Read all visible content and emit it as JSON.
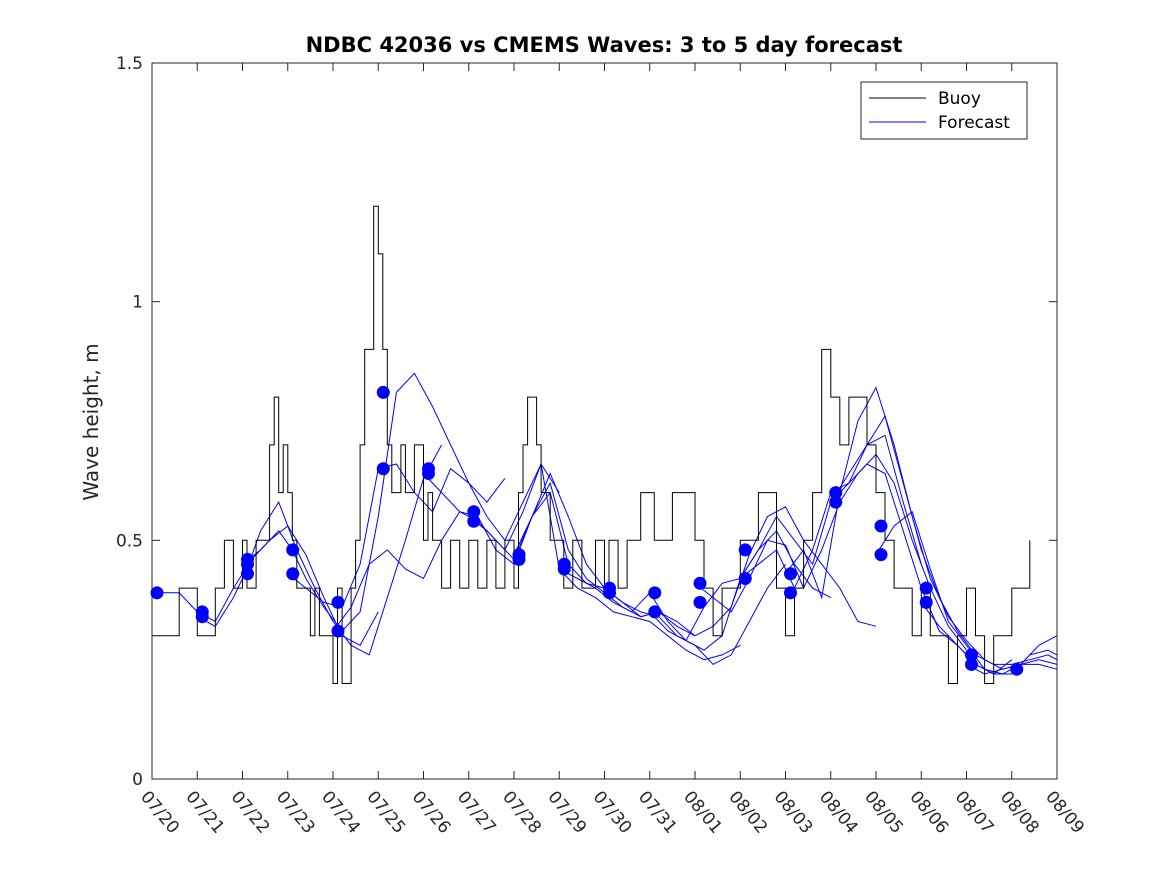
{
  "chart_data": {
    "type": "line",
    "title": "NDBC 42036 vs CMEMS Waves: 3 to 5 day forecast",
    "xlabel": "",
    "ylabel": "Wave height, m",
    "x_tick_labels": [
      "07/20",
      "07/21",
      "07/22",
      "07/23",
      "07/24",
      "07/25",
      "07/26",
      "07/27",
      "07/28",
      "07/29",
      "07/30",
      "07/31",
      "08/01",
      "08/02",
      "08/03",
      "08/04",
      "08/05",
      "08/06",
      "08/07",
      "08/08",
      "08/09"
    ],
    "x_range_days": [
      0,
      20
    ],
    "y_tick_labels": [
      "0",
      "0.5",
      "1",
      "1.5"
    ],
    "ylim": [
      0,
      1.5
    ],
    "grid": false,
    "legend_position": "top-right",
    "colors": {
      "buoy": "#000000",
      "forecast": "#0000ff"
    },
    "series": [
      {
        "name": "Buoy",
        "style": "step",
        "x": [
          0,
          0.6,
          1.0,
          1.1,
          1.4,
          1.6,
          1.8,
          2.0,
          2.1,
          2.3,
          2.6,
          2.7,
          2.8,
          2.9,
          3.0,
          3.1,
          3.2,
          3.4,
          3.5,
          3.6,
          3.7,
          3.9,
          4.0,
          4.1,
          4.2,
          4.4,
          4.5,
          4.6,
          4.7,
          4.8,
          4.9,
          5.0,
          5.1,
          5.2,
          5.3,
          5.5,
          5.6,
          5.8,
          6.0,
          6.1,
          6.2,
          6.4,
          6.6,
          6.8,
          7.0,
          7.2,
          7.4,
          7.6,
          7.8,
          8.0,
          8.1,
          8.2,
          8.3,
          8.4,
          8.5,
          8.6,
          8.8,
          9.0,
          9.1,
          9.3,
          9.5,
          9.8,
          10.0,
          10.1,
          10.3,
          10.5,
          10.8,
          11.0,
          11.1,
          11.3,
          11.5,
          11.8,
          12.0,
          12.2,
          12.4,
          12.6,
          12.8,
          13.0,
          13.2,
          13.4,
          13.6,
          13.8,
          14.0,
          14.2,
          14.4,
          14.6,
          14.8,
          15.0,
          15.2,
          15.4,
          15.6,
          15.8,
          16.0,
          16.2,
          16.4,
          16.6,
          16.8,
          17.0,
          17.2,
          17.4,
          17.6,
          17.8,
          18.0,
          18.2,
          18.4,
          18.6,
          18.8,
          19.0,
          19.2,
          19.4
        ],
        "y": [
          0.3,
          0.4,
          0.3,
          0.3,
          0.4,
          0.5,
          0.4,
          0.5,
          0.4,
          0.5,
          0.7,
          0.8,
          0.6,
          0.7,
          0.6,
          0.5,
          0.4,
          0.4,
          0.3,
          0.4,
          0.3,
          0.3,
          0.2,
          0.4,
          0.2,
          0.4,
          0.5,
          0.7,
          0.9,
          0.9,
          1.2,
          1.1,
          0.9,
          0.7,
          0.6,
          0.7,
          0.6,
          0.7,
          0.5,
          0.6,
          0.5,
          0.4,
          0.5,
          0.4,
          0.5,
          0.4,
          0.5,
          0.4,
          0.5,
          0.4,
          0.6,
          0.7,
          0.8,
          0.8,
          0.7,
          0.6,
          0.5,
          0.5,
          0.4,
          0.5,
          0.4,
          0.5,
          0.4,
          0.5,
          0.4,
          0.5,
          0.6,
          0.6,
          0.5,
          0.5,
          0.6,
          0.6,
          0.5,
          0.4,
          0.3,
          0.4,
          0.4,
          0.5,
          0.5,
          0.6,
          0.6,
          0.4,
          0.3,
          0.4,
          0.5,
          0.6,
          0.9,
          0.8,
          0.7,
          0.8,
          0.8,
          0.7,
          0.6,
          0.5,
          0.4,
          0.4,
          0.3,
          0.4,
          0.3,
          0.3,
          0.2,
          0.3,
          0.4,
          0.3,
          0.2,
          0.3,
          0.3,
          0.4,
          0.4,
          0.5
        ]
      },
      {
        "name": "Forecast",
        "style": "line",
        "segments": [
          {
            "x": [
              0,
              0.6,
              1.0,
              1.4,
              1.8,
              2.2,
              2.6,
              3.0,
              3.4,
              3.8,
              4.2,
              4.6,
              5.0
            ],
            "y": [
              0.39,
              0.39,
              0.35,
              0.33,
              0.4,
              0.46,
              0.5,
              0.53,
              0.47,
              0.38,
              0.3,
              0.28,
              0.35
            ]
          },
          {
            "x": [
              1.0,
              1.4,
              1.8,
              2.1,
              2.4,
              2.8,
              3.2,
              3.6,
              4.0,
              4.4,
              4.8,
              5.2,
              5.6,
              6.0,
              6.4
            ],
            "y": [
              0.34,
              0.32,
              0.38,
              0.44,
              0.52,
              0.58,
              0.48,
              0.4,
              0.33,
              0.28,
              0.26,
              0.38,
              0.5,
              0.63,
              0.7
            ]
          },
          {
            "x": [
              2.0,
              2.4,
              2.8,
              3.1,
              3.4,
              3.8,
              4.2,
              4.6,
              5.0,
              5.4,
              5.8,
              6.2,
              6.6,
              7.0,
              7.4,
              7.8
            ],
            "y": [
              0.45,
              0.48,
              0.52,
              0.48,
              0.42,
              0.36,
              0.31,
              0.35,
              0.55,
              0.81,
              0.85,
              0.78,
              0.7,
              0.62,
              0.58,
              0.63
            ]
          },
          {
            "x": [
              3.0,
              3.4,
              3.8,
              4.2,
              4.6,
              5.0,
              5.4,
              5.8,
              6.2,
              6.6,
              7.0,
              7.4,
              7.8,
              8.2,
              8.6,
              9.0
            ],
            "y": [
              0.43,
              0.4,
              0.37,
              0.36,
              0.45,
              0.65,
              0.66,
              0.6,
              0.56,
              0.65,
              0.62,
              0.55,
              0.5,
              0.58,
              0.66,
              0.6
            ]
          },
          {
            "x": [
              4.0,
              4.4,
              4.8,
              5.2,
              5.6,
              6.0,
              6.4,
              6.8,
              7.2,
              7.6,
              8.0,
              8.4,
              8.8,
              9.2,
              9.6,
              10.0
            ],
            "y": [
              0.31,
              0.36,
              0.45,
              0.48,
              0.44,
              0.42,
              0.5,
              0.56,
              0.55,
              0.48,
              0.45,
              0.55,
              0.64,
              0.55,
              0.45,
              0.4
            ]
          },
          {
            "x": [
              6.0,
              6.4,
              6.8,
              7.2,
              7.6,
              8.0,
              8.4,
              8.8,
              9.2,
              9.6,
              10.0,
              10.4,
              10.8,
              11.2,
              11.6,
              12.0
            ],
            "y": [
              0.64,
              0.6,
              0.56,
              0.54,
              0.5,
              0.46,
              0.55,
              0.62,
              0.48,
              0.42,
              0.39,
              0.36,
              0.34,
              0.35,
              0.32,
              0.3
            ]
          },
          {
            "x": [
              7.0,
              7.4,
              7.8,
              8.2,
              8.6,
              9.0,
              9.4,
              9.8,
              10.2,
              10.6,
              11.0,
              11.4,
              11.8,
              12.2,
              12.6,
              13.0
            ],
            "y": [
              0.55,
              0.52,
              0.48,
              0.56,
              0.66,
              0.44,
              0.4,
              0.38,
              0.35,
              0.34,
              0.33,
              0.3,
              0.27,
              0.25,
              0.26,
              0.28
            ]
          },
          {
            "x": [
              8.0,
              8.4,
              8.8,
              9.2,
              9.6,
              10.0,
              10.4,
              10.8,
              11.2,
              11.6,
              12.0,
              12.4,
              12.8,
              13.2,
              13.6,
              14.0
            ],
            "y": [
              0.47,
              0.55,
              0.6,
              0.45,
              0.41,
              0.4,
              0.37,
              0.35,
              0.34,
              0.3,
              0.28,
              0.24,
              0.26,
              0.33,
              0.4,
              0.45
            ]
          },
          {
            "x": [
              9.0,
              9.4,
              9.8,
              10.2,
              10.6,
              11.0,
              11.4,
              11.8,
              12.2,
              12.6,
              13.0,
              13.4,
              13.8,
              14.2,
              14.6,
              15.0
            ],
            "y": [
              0.44,
              0.42,
              0.4,
              0.37,
              0.35,
              0.39,
              0.33,
              0.29,
              0.27,
              0.3,
              0.42,
              0.48,
              0.52,
              0.45,
              0.4,
              0.38
            ]
          },
          {
            "x": [
              10.0,
              10.4,
              10.8,
              11.2,
              11.6,
              12.0,
              12.4,
              12.8,
              13.2,
              13.6,
              14.0,
              14.4,
              14.8,
              15.2,
              15.6,
              16.0
            ],
            "y": [
              0.4,
              0.37,
              0.34,
              0.35,
              0.33,
              0.3,
              0.32,
              0.36,
              0.47,
              0.55,
              0.57,
              0.5,
              0.45,
              0.4,
              0.33,
              0.32
            ]
          },
          {
            "x": [
              11.0,
              11.4,
              11.8,
              12.2,
              12.6,
              13.0,
              13.4,
              13.8,
              14.2,
              14.6,
              15.0,
              15.4,
              15.8,
              16.2,
              16.6,
              17.0
            ],
            "y": [
              0.35,
              0.31,
              0.29,
              0.36,
              0.41,
              0.42,
              0.48,
              0.55,
              0.5,
              0.45,
              0.58,
              0.64,
              0.7,
              0.72,
              0.58,
              0.45
            ]
          },
          {
            "x": [
              12.0,
              12.4,
              12.8,
              13.2,
              13.6,
              14.0,
              14.4,
              14.8,
              15.2,
              15.6,
              16.0,
              16.4,
              16.8,
              17.2,
              17.6,
              18.0
            ],
            "y": [
              0.41,
              0.38,
              0.35,
              0.42,
              0.5,
              0.49,
              0.4,
              0.48,
              0.58,
              0.64,
              0.68,
              0.62,
              0.5,
              0.4,
              0.32,
              0.27
            ]
          },
          {
            "x": [
              13.0,
              13.4,
              13.8,
              14.2,
              14.6,
              15.0,
              15.4,
              15.8,
              16.2,
              16.6,
              17.0,
              17.4,
              17.8,
              18.2,
              18.6,
              19.0
            ],
            "y": [
              0.42,
              0.45,
              0.48,
              0.4,
              0.48,
              0.6,
              0.62,
              0.66,
              0.64,
              0.52,
              0.4,
              0.31,
              0.28,
              0.24,
              0.22,
              0.25
            ]
          },
          {
            "x": [
              14.0,
              14.4,
              14.8,
              15.2,
              15.6,
              16.0,
              16.4,
              16.8,
              17.2,
              17.6,
              18.0,
              18.4,
              18.8,
              19.2,
              19.6,
              20.0
            ],
            "y": [
              0.43,
              0.48,
              0.38,
              0.6,
              0.75,
              0.82,
              0.7,
              0.55,
              0.42,
              0.34,
              0.29,
              0.25,
              0.23,
              0.24,
              0.25,
              0.24
            ]
          },
          {
            "x": [
              15.0,
              15.4,
              15.8,
              16.2,
              16.6,
              17.0,
              17.4,
              17.8,
              18.2,
              18.6,
              19.0,
              19.4,
              19.8,
              20.0
            ],
            "y": [
              0.58,
              0.62,
              0.7,
              0.76,
              0.62,
              0.48,
              0.38,
              0.31,
              0.26,
              0.24,
              0.24,
              0.25,
              0.26,
              0.25
            ]
          },
          {
            "x": [
              16.0,
              16.4,
              16.8,
              17.2,
              17.6,
              18.0,
              18.4,
              18.8,
              19.2,
              19.6,
              20.0
            ],
            "y": [
              0.47,
              0.53,
              0.56,
              0.44,
              0.33,
              0.28,
              0.23,
              0.22,
              0.24,
              0.28,
              0.3
            ]
          },
          {
            "x": [
              17.0,
              17.4,
              17.8,
              18.2,
              18.6,
              19.0,
              19.4,
              19.8,
              20.0
            ],
            "y": [
              0.37,
              0.32,
              0.28,
              0.24,
              0.22,
              0.22,
              0.26,
              0.27,
              0.26
            ]
          },
          {
            "x": [
              18.0,
              18.4,
              18.8,
              19.2,
              19.6,
              20.0
            ],
            "y": [
              0.24,
              0.22,
              0.23,
              0.24,
              0.24,
              0.23
            ]
          }
        ],
        "markers": {
          "x": [
            0,
            1,
            1,
            2,
            2,
            2,
            3,
            3,
            4,
            4,
            5,
            5,
            6,
            6,
            7,
            7,
            8,
            8,
            9,
            9,
            10,
            10,
            11,
            11,
            12,
            12,
            13,
            13,
            14,
            14,
            15,
            15,
            16,
            16,
            17,
            17,
            18,
            18,
            19
          ],
          "y": [
            0.39,
            0.35,
            0.34,
            0.46,
            0.45,
            0.43,
            0.48,
            0.43,
            0.37,
            0.31,
            0.81,
            0.65,
            0.65,
            0.64,
            0.56,
            0.54,
            0.47,
            0.46,
            0.45,
            0.44,
            0.4,
            0.39,
            0.39,
            0.35,
            0.41,
            0.37,
            0.48,
            0.42,
            0.43,
            0.39,
            0.6,
            0.58,
            0.53,
            0.47,
            0.4,
            0.37,
            0.26,
            0.24,
            0.23
          ]
        }
      }
    ],
    "legend": [
      "Buoy",
      "Forecast"
    ]
  }
}
